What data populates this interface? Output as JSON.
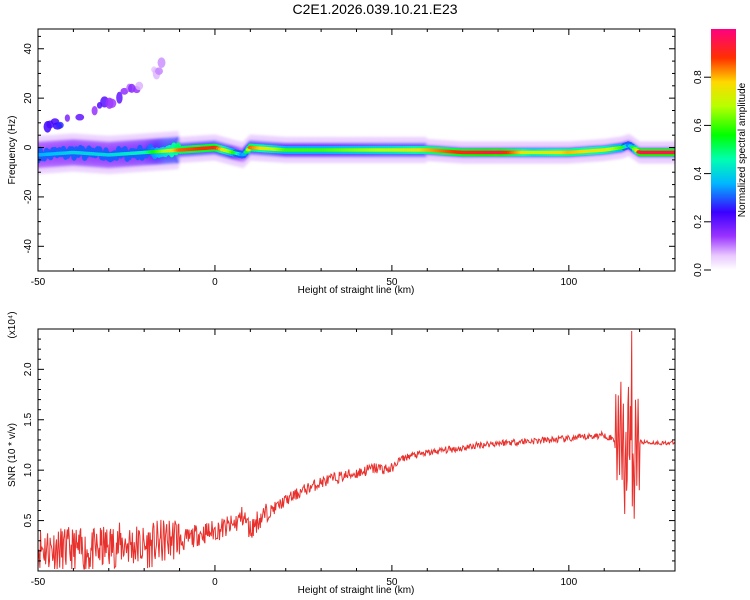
{
  "title": "C2E1.2026.039.10.21.E23",
  "chart_data": [
    {
      "type": "heatmap",
      "xlabel": "Height of straight line (km)",
      "ylabel": "Frequency (Hz)",
      "xlim": [
        -50,
        130
      ],
      "ylim": [
        -50,
        48
      ],
      "xticks": [
        -50,
        0,
        50,
        100
      ],
      "yticks": [
        -40,
        -20,
        0,
        20,
        40
      ],
      "grid": false,
      "colorbar": {
        "label": "Normalized spectral amplitude",
        "range": [
          0,
          1
        ],
        "ticks": [
          "0.0",
          "0.2",
          "0.4",
          "0.6",
          "0.8"
        ],
        "colormap": "rainbow (white-violet-blue-cyan-green-yellow-red-magenta)"
      },
      "ridge": {
        "description": "dominant spectral ridge near 0 Hz across all heights",
        "x": [
          -50,
          -40,
          -30,
          -20,
          -10,
          0,
          5,
          8,
          10,
          20,
          30,
          40,
          50,
          60,
          70,
          80,
          90,
          100,
          110,
          115,
          117,
          120,
          130
        ],
        "y": [
          -3,
          -2,
          -3,
          -2,
          -1,
          0,
          -2,
          -3,
          0,
          -1,
          -1,
          -1,
          -1,
          -1,
          -2,
          -2,
          -2,
          -2,
          -1,
          0,
          1,
          -2,
          -2
        ],
        "amplitude": [
          0.35,
          0.4,
          0.4,
          0.45,
          0.85,
          0.9,
          0.6,
          0.3,
          0.85,
          0.6,
          0.6,
          0.65,
          0.7,
          0.8,
          0.9,
          0.95,
          0.7,
          0.8,
          0.75,
          0.6,
          0.3,
          0.95,
          0.95
        ]
      },
      "secondary_branch": {
        "description": "weak rising branch at low heights",
        "x": [
          -48,
          -40,
          -35,
          -30,
          -25,
          -20,
          -15
        ],
        "y": [
          8,
          12,
          15,
          18,
          22,
          27,
          33
        ],
        "amplitude": [
          0.2,
          0.15,
          0.15,
          0.1,
          0.1,
          0.05,
          0.05
        ]
      }
    },
    {
      "type": "line",
      "xlabel": "Height of straight line (km)",
      "ylabel": "SNR (10 * v/v)",
      "y_multiplier": "(x10⁴)",
      "xlim": [
        -50,
        130
      ],
      "ylim": [
        0,
        2.4
      ],
      "xticks": [
        -50,
        0,
        50,
        100
      ],
      "yticks": [
        "0.5",
        "1.0",
        "1.5",
        "2.0"
      ],
      "grid": false,
      "color": "#e8302c",
      "series": [
        {
          "x": [
            -50,
            -45,
            -40,
            -35,
            -30,
            -25,
            -20,
            -15,
            -10,
            -5,
            0,
            5,
            8,
            10,
            12,
            15,
            20,
            25,
            30,
            35,
            40,
            45,
            50,
            52,
            55,
            60,
            65,
            70,
            75,
            80,
            85,
            90,
            95,
            100,
            105,
            110,
            113,
            115,
            116,
            117,
            118,
            119,
            120,
            125,
            130
          ],
          "y": [
            0.17,
            0.15,
            0.14,
            0.12,
            0.18,
            0.2,
            0.17,
            0.22,
            0.28,
            0.36,
            0.4,
            0.45,
            0.55,
            0.4,
            0.5,
            0.58,
            0.7,
            0.8,
            0.88,
            0.93,
            0.97,
            1.02,
            1.01,
            1.1,
            1.14,
            1.17,
            1.2,
            1.22,
            1.25,
            1.27,
            1.28,
            1.29,
            1.3,
            1.31,
            1.33,
            1.35,
            1.3,
            1.4,
            0.9,
            1.6,
            0.7,
            1.35,
            1.28,
            1.27,
            1.27
          ]
        }
      ]
    }
  ]
}
